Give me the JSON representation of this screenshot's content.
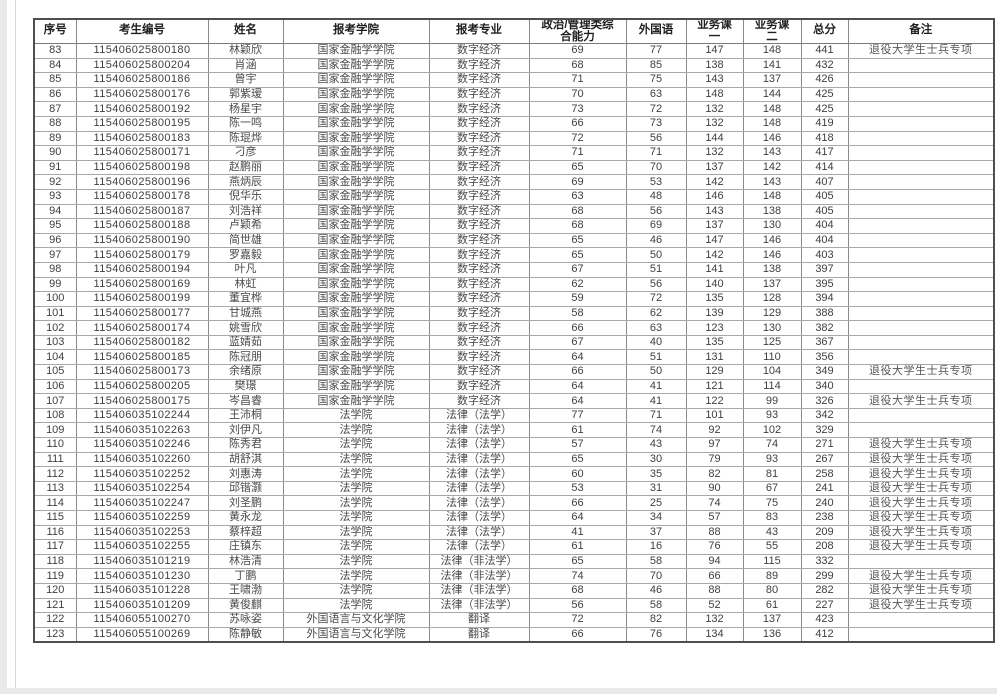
{
  "table": {
    "columns": [
      {
        "key": "serial",
        "label": "序号"
      },
      {
        "key": "candidate-id",
        "label": "考生编号"
      },
      {
        "key": "name",
        "label": "姓名"
      },
      {
        "key": "college",
        "label": "报考学院"
      },
      {
        "key": "major",
        "label": "报考专业"
      },
      {
        "key": "politics-management",
        "label": "政治/管理类综合能力"
      },
      {
        "key": "foreign-language",
        "label": "外国语"
      },
      {
        "key": "course-1",
        "label": "业务课一"
      },
      {
        "key": "course-2",
        "label": "业务课二"
      },
      {
        "key": "total",
        "label": "总分"
      },
      {
        "key": "remarks",
        "label": "备注"
      }
    ],
    "rows": [
      [
        "83",
        "115406025800180",
        "林颖欣",
        "国家金融学学院",
        "数字经济",
        "69",
        "77",
        "147",
        "148",
        "441",
        "退役大学生士兵专项"
      ],
      [
        "84",
        "115406025800204",
        "肖涵",
        "国家金融学学院",
        "数字经济",
        "68",
        "85",
        "138",
        "141",
        "432",
        ""
      ],
      [
        "85",
        "115406025800186",
        "曾宇",
        "国家金融学学院",
        "数字经济",
        "71",
        "75",
        "143",
        "137",
        "426",
        ""
      ],
      [
        "86",
        "115406025800176",
        "郭紫瑷",
        "国家金融学学院",
        "数字经济",
        "70",
        "63",
        "148",
        "144",
        "425",
        ""
      ],
      [
        "87",
        "115406025800192",
        "杨星宇",
        "国家金融学学院",
        "数字经济",
        "73",
        "72",
        "132",
        "148",
        "425",
        ""
      ],
      [
        "88",
        "115406025800195",
        "陈一鸣",
        "国家金融学学院",
        "数字经济",
        "66",
        "73",
        "132",
        "148",
        "419",
        ""
      ],
      [
        "89",
        "115406025800183",
        "陈琨烨",
        "国家金融学学院",
        "数字经济",
        "72",
        "56",
        "144",
        "146",
        "418",
        ""
      ],
      [
        "90",
        "115406025800171",
        "刁彦",
        "国家金融学学院",
        "数字经济",
        "71",
        "71",
        "132",
        "143",
        "417",
        ""
      ],
      [
        "91",
        "115406025800198",
        "赵鹏丽",
        "国家金融学学院",
        "数字经济",
        "65",
        "70",
        "137",
        "142",
        "414",
        ""
      ],
      [
        "92",
        "115406025800196",
        "燕炳辰",
        "国家金融学学院",
        "数字经济",
        "69",
        "53",
        "142",
        "143",
        "407",
        ""
      ],
      [
        "93",
        "115406025800178",
        "倪华乐",
        "国家金融学学院",
        "数字经济",
        "63",
        "48",
        "146",
        "148",
        "405",
        ""
      ],
      [
        "94",
        "115406025800187",
        "刘浩祥",
        "国家金融学学院",
        "数字经济",
        "68",
        "56",
        "143",
        "138",
        "405",
        ""
      ],
      [
        "95",
        "115406025800188",
        "卢颖希",
        "国家金融学学院",
        "数字经济",
        "68",
        "69",
        "137",
        "130",
        "404",
        ""
      ],
      [
        "96",
        "115406025800190",
        "简世雄",
        "国家金融学学院",
        "数字经济",
        "65",
        "46",
        "147",
        "146",
        "404",
        ""
      ],
      [
        "97",
        "115406025800179",
        "罗嘉毅",
        "国家金融学学院",
        "数字经济",
        "65",
        "50",
        "142",
        "146",
        "403",
        ""
      ],
      [
        "98",
        "115406025800194",
        "叶凡",
        "国家金融学学院",
        "数字经济",
        "67",
        "51",
        "141",
        "138",
        "397",
        ""
      ],
      [
        "99",
        "115406025800169",
        "林虹",
        "国家金融学学院",
        "数字经济",
        "62",
        "56",
        "140",
        "137",
        "395",
        ""
      ],
      [
        "100",
        "115406025800199",
        "董宜桦",
        "国家金融学学院",
        "数字经济",
        "59",
        "72",
        "135",
        "128",
        "394",
        ""
      ],
      [
        "101",
        "115406025800177",
        "甘城燕",
        "国家金融学学院",
        "数字经济",
        "58",
        "62",
        "139",
        "129",
        "388",
        ""
      ],
      [
        "102",
        "115406025800174",
        "姚雪欣",
        "国家金融学学院",
        "数字经济",
        "66",
        "63",
        "123",
        "130",
        "382",
        ""
      ],
      [
        "103",
        "115406025800182",
        "蓝婧茹",
        "国家金融学学院",
        "数字经济",
        "67",
        "40",
        "135",
        "125",
        "367",
        ""
      ],
      [
        "104",
        "115406025800185",
        "陈冠朋",
        "国家金融学学院",
        "数字经济",
        "64",
        "51",
        "131",
        "110",
        "356",
        ""
      ],
      [
        "105",
        "115406025800173",
        "余绪原",
        "国家金融学学院",
        "数字经济",
        "66",
        "50",
        "129",
        "104",
        "349",
        "退役大学生士兵专项"
      ],
      [
        "106",
        "115406025800205",
        "樊璟",
        "国家金融学学院",
        "数字经济",
        "64",
        "41",
        "121",
        "114",
        "340",
        ""
      ],
      [
        "107",
        "115406025800175",
        "岑昌睿",
        "国家金融学学院",
        "数字经济",
        "64",
        "41",
        "122",
        "99",
        "326",
        "退役大学生士兵专项"
      ],
      [
        "108",
        "115406035102244",
        "王沛桐",
        "法学院",
        "法律（法学）",
        "77",
        "71",
        "101",
        "93",
        "342",
        ""
      ],
      [
        "109",
        "115406035102263",
        "刘伊凡",
        "法学院",
        "法律（法学）",
        "61",
        "74",
        "92",
        "102",
        "329",
        ""
      ],
      [
        "110",
        "115406035102246",
        "陈秀君",
        "法学院",
        "法律（法学）",
        "57",
        "43",
        "97",
        "74",
        "271",
        "退役大学生士兵专项"
      ],
      [
        "111",
        "115406035102260",
        "胡舒淇",
        "法学院",
        "法律（法学）",
        "65",
        "30",
        "79",
        "93",
        "267",
        "退役大学生士兵专项"
      ],
      [
        "112",
        "115406035102252",
        "刘惠涛",
        "法学院",
        "法律（法学）",
        "60",
        "35",
        "82",
        "81",
        "258",
        "退役大学生士兵专项"
      ],
      [
        "113",
        "115406035102254",
        "邱锴灏",
        "法学院",
        "法律（法学）",
        "53",
        "31",
        "90",
        "67",
        "241",
        "退役大学生士兵专项"
      ],
      [
        "114",
        "115406035102247",
        "刘圣鹏",
        "法学院",
        "法律（法学）",
        "66",
        "25",
        "74",
        "75",
        "240",
        "退役大学生士兵专项"
      ],
      [
        "115",
        "115406035102259",
        "黄永龙",
        "法学院",
        "法律（法学）",
        "64",
        "34",
        "57",
        "83",
        "238",
        "退役大学生士兵专项"
      ],
      [
        "116",
        "115406035102253",
        "蔡梓超",
        "法学院",
        "法律（法学）",
        "41",
        "37",
        "88",
        "43",
        "209",
        "退役大学生士兵专项"
      ],
      [
        "117",
        "115406035102255",
        "庄镇东",
        "法学院",
        "法律（法学）",
        "61",
        "16",
        "76",
        "55",
        "208",
        "退役大学生士兵专项"
      ],
      [
        "118",
        "115406035101219",
        "林浩清",
        "法学院",
        "法律（非法学）",
        "65",
        "58",
        "94",
        "115",
        "332",
        ""
      ],
      [
        "119",
        "115406035101230",
        "丁鹏",
        "法学院",
        "法律（非法学）",
        "74",
        "70",
        "66",
        "89",
        "299",
        "退役大学生士兵专项"
      ],
      [
        "120",
        "115406035101228",
        "王啸渤",
        "法学院",
        "法律（非法学）",
        "68",
        "46",
        "88",
        "80",
        "282",
        "退役大学生士兵专项"
      ],
      [
        "121",
        "115406035101209",
        "黄俊麒",
        "法学院",
        "法律（非法学）",
        "56",
        "58",
        "52",
        "61",
        "227",
        "退役大学生士兵专项"
      ],
      [
        "122",
        "115406055100270",
        "苏咏姿",
        "外国语言与文化学院",
        "翻译",
        "72",
        "82",
        "132",
        "137",
        "423",
        ""
      ],
      [
        "123",
        "115406055100269",
        "陈静敏",
        "外国语言与文化学院",
        "翻译",
        "66",
        "76",
        "134",
        "136",
        "412",
        ""
      ]
    ]
  }
}
